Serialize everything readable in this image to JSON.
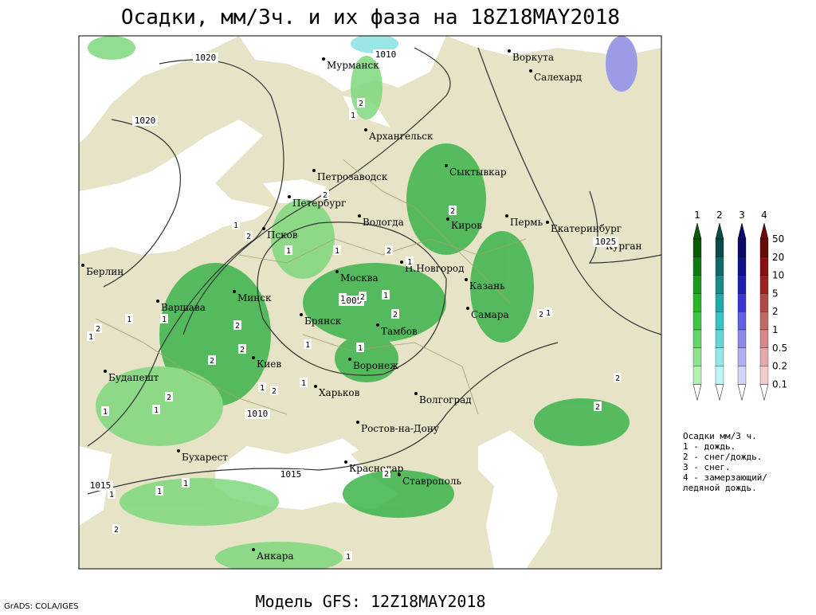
{
  "header": {
    "title": "Осадки, мм/3ч. и их фаза на 18Z18MAY2018"
  },
  "footer": {
    "model": "Модель GFS: 12Z18MAY2018",
    "credit": "GrADS: COLA/IGES"
  },
  "map": {
    "cities": [
      "Мурманск",
      "Воркута",
      "Салехард",
      "Архангельск",
      "Петрозаводск",
      "Сыктывкар",
      "Петербург",
      "Вологда",
      "Киров",
      "Пермь",
      "Екатеринбург",
      "Курган",
      "Псков",
      "Берлин",
      "Москва",
      "Н.Новгород",
      "Казань",
      "Минск",
      "Варшава",
      "Самара",
      "Брянск",
      "Тамбов",
      "Воронеж",
      "Киев",
      "Будапешт",
      "Харьков",
      "Волгоград",
      "Ростов-на-Дону",
      "Бухарест",
      "Краснодар",
      "Ставрополь",
      "Анкара"
    ],
    "isobars": [
      1020,
      1010,
      1020,
      1025,
      1005,
      1010,
      1015,
      1015
    ],
    "phase_marks": [
      "2",
      "1",
      "2",
      "2",
      "1",
      "2",
      "1",
      "1",
      "2",
      "1",
      "1",
      "1",
      "2",
      "2",
      "1",
      "1",
      "2",
      "1",
      "2",
      "1",
      "1",
      "2",
      "1",
      "2",
      "1",
      "2",
      "1",
      "1",
      "2",
      "2",
      "1",
      "2",
      "1",
      "1",
      "1",
      "2",
      "1",
      "2",
      "2"
    ]
  },
  "legend": {
    "phases": [
      1,
      2,
      3,
      4
    ],
    "levels": [
      50,
      20,
      10,
      5,
      2,
      1,
      0.5,
      0.2,
      0.1
    ],
    "note": [
      "Осадки мм/3 ч.",
      "1 - дождь.",
      "2 - снег/дождь.",
      "3 - снег.",
      "4 - замерзающий/",
      "ледяной дождь."
    ]
  }
}
